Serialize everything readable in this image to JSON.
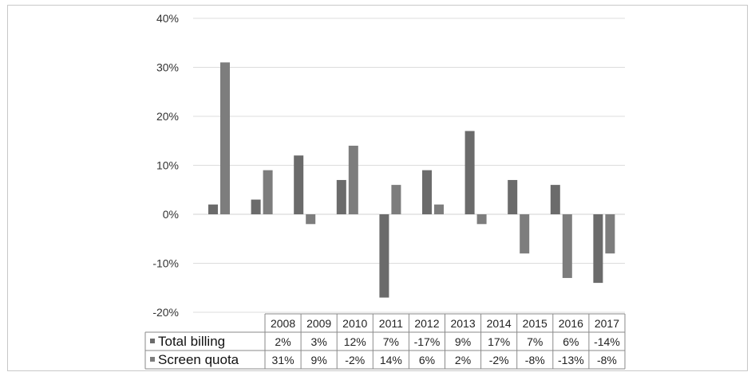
{
  "chart_data": {
    "type": "bar",
    "categories": [
      "2008",
      "2009",
      "2010",
      "2011",
      "2012",
      "2013",
      "2014",
      "2015",
      "2016",
      "2017"
    ],
    "series": [
      {
        "name": "Total billing",
        "values": [
          2,
          3,
          12,
          7,
          -17,
          9,
          17,
          7,
          6,
          -14
        ],
        "labels": [
          "2%",
          "3%",
          "12%",
          "7%",
          "-17%",
          "9%",
          "17%",
          "7%",
          "6%",
          "-14%"
        ],
        "color": "#6b6b6b"
      },
      {
        "name": "Screen quota",
        "values": [
          31,
          9,
          -2,
          14,
          6,
          2,
          -2,
          -8,
          -13,
          -8
        ],
        "labels": [
          "31%",
          "9%",
          "-2%",
          "14%",
          "6%",
          "2%",
          "-2%",
          "-8%",
          "-13%",
          "-8%"
        ],
        "color": "#7d7d7d"
      }
    ],
    "ylim": [
      -20,
      40
    ],
    "yticks": [
      "40%",
      "30%",
      "20%",
      "10%",
      "0%",
      "-10%",
      "-20%"
    ],
    "ytick_values": [
      40,
      30,
      20,
      10,
      0,
      -10,
      -20
    ],
    "grid": true,
    "legend": "data-table-left",
    "title": "",
    "xlabel": "",
    "ylabel": ""
  }
}
